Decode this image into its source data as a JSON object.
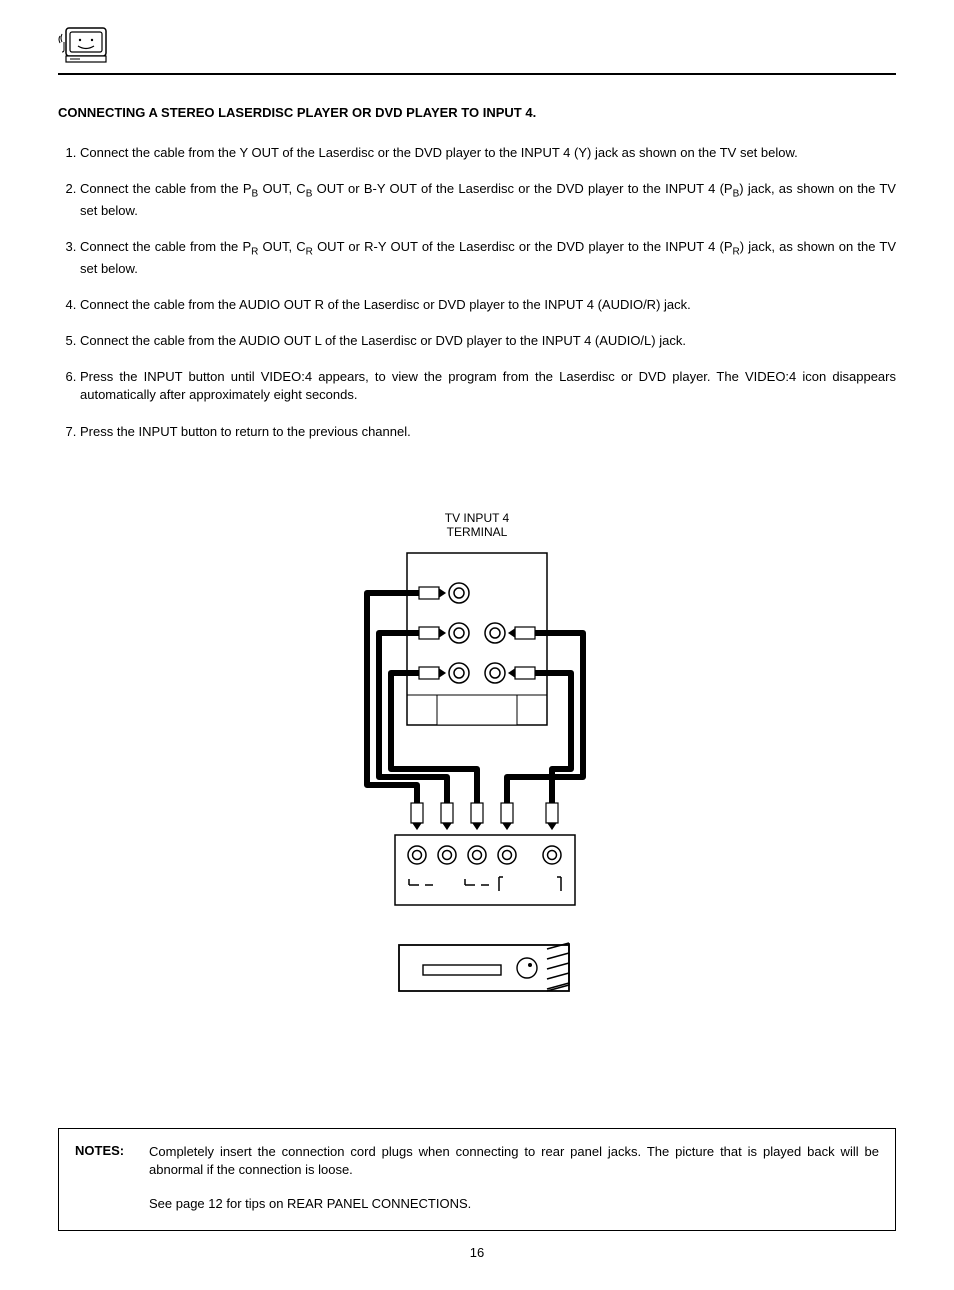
{
  "header": {
    "icon_name": "tv-friendly-icon"
  },
  "title": "CONNECTING A STEREO LASERDISC PLAYER OR DVD PLAYER TO INPUT 4.",
  "steps": [
    "Connect  the cable from the Y OUT of the Laserdisc or the DVD player to the INPUT 4 (Y) jack as shown on the TV set below.",
    "Connect the cable from the P|B| OUT, C|B| OUT or B-Y OUT of the Laserdisc or the DVD player to the INPUT 4 (P|B|) jack, as shown on the TV set below.",
    "Connect the cable from the P|R| OUT, C|R| OUT or R-Y OUT of the Laserdisc or the DVD player to the INPUT 4 (P|R|) jack, as shown on the TV set below.",
    "Connect the cable from the AUDIO OUT R of the Laserdisc or DVD player to the INPUT 4 (AUDIO/R) jack.",
    "Connect the cable from the AUDIO OUT L of the Laserdisc or DVD player to the INPUT 4 (AUDIO/L) jack.",
    "Press the INPUT button until VIDEO:4 appears, to view the program from the Laserdisc or DVD player.  The VIDEO:4 icon disappears automatically after approximately eight seconds.",
    "Press the INPUT button to return to the previous channel."
  ],
  "diagram": {
    "label_line1": "TV INPUT 4",
    "label_line2": "TERMINAL",
    "colors": {
      "stroke": "#000000",
      "fill_white": "#ffffff",
      "cable": "#000000"
    }
  },
  "notes": {
    "label": "NOTES:",
    "lines": [
      "Completely insert the connection cord plugs when connecting to rear panel jacks.  The picture that is played back will be abnormal if the connection is loose.",
      "See page 12 for tips on REAR PANEL CONNECTIONS."
    ]
  },
  "page_number": "16"
}
